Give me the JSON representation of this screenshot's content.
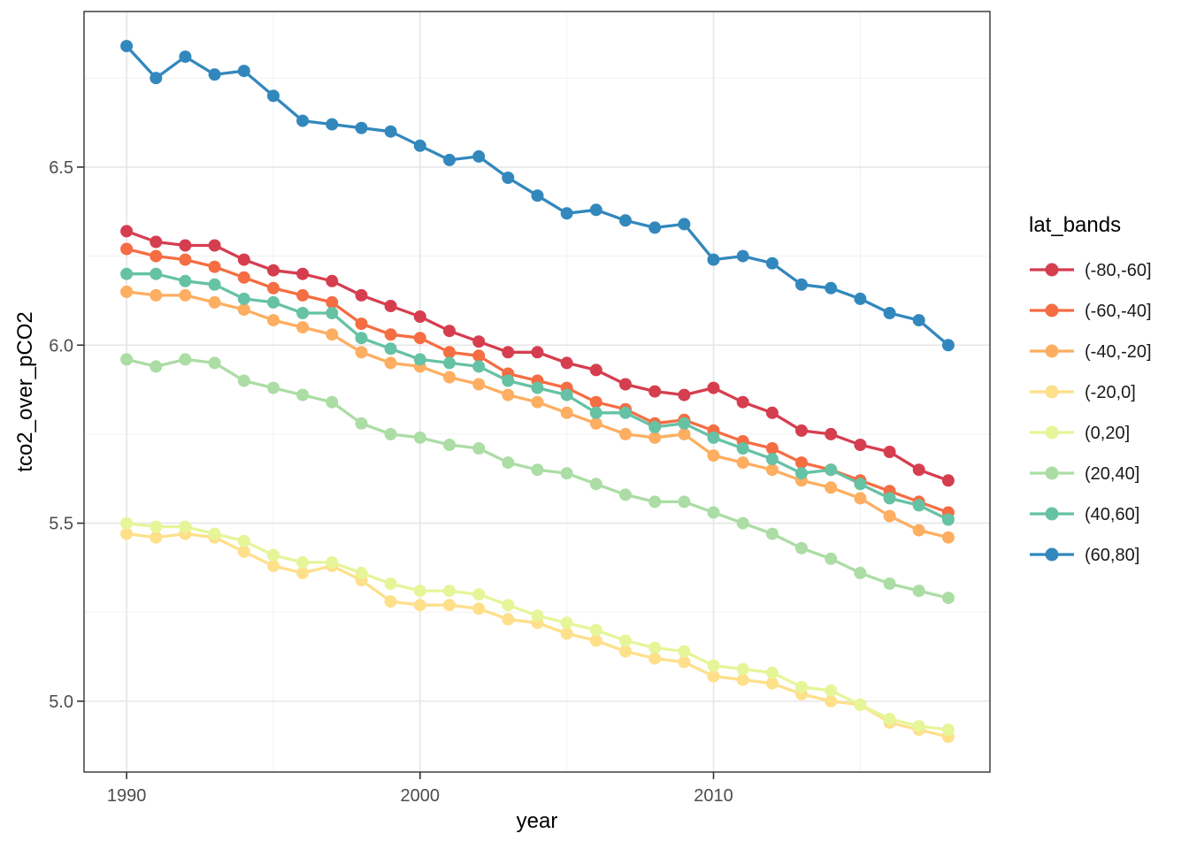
{
  "chart_data": {
    "type": "line",
    "title": "",
    "xlabel": "year",
    "ylabel": "tco2_over_pCO2",
    "legend_title": "lat_bands",
    "legend_position": "right",
    "grid": true,
    "panel_background": "#ffffff",
    "major_grid_color": "#e6e6e6",
    "minor_grid_color": "#f0f0f0",
    "panel_border_color": "#333333",
    "tick_color": "#333333",
    "x": [
      1990,
      1991,
      1992,
      1993,
      1994,
      1995,
      1996,
      1997,
      1998,
      1999,
      2000,
      2001,
      2002,
      2003,
      2004,
      2005,
      2006,
      2007,
      2008,
      2009,
      2010,
      2011,
      2012,
      2013,
      2014,
      2015,
      2016,
      2017,
      2018
    ],
    "x_ticks": [
      1990,
      2000,
      2010
    ],
    "x_minor_ticks": [
      1995,
      2005,
      2015
    ],
    "y_ticks": [
      5.0,
      5.5,
      6.0,
      6.5
    ],
    "y_minor_ticks": [
      5.25,
      5.75,
      6.25,
      6.75
    ],
    "xlim": [
      1988.55,
      2019.42
    ],
    "ylim": [
      4.801,
      6.937
    ],
    "series": [
      {
        "name": "(-80,-60]",
        "color": "#d53e4f",
        "values": [
          6.32,
          6.29,
          6.28,
          6.28,
          6.24,
          6.21,
          6.2,
          6.18,
          6.14,
          6.11,
          6.08,
          6.04,
          6.01,
          5.98,
          5.98,
          5.95,
          5.93,
          5.89,
          5.87,
          5.86,
          5.88,
          5.84,
          5.81,
          5.76,
          5.75,
          5.72,
          5.7,
          5.65,
          5.62
        ]
      },
      {
        "name": "(-60,-40]",
        "color": "#f46d43",
        "values": [
          6.27,
          6.25,
          6.24,
          6.22,
          6.19,
          6.16,
          6.14,
          6.12,
          6.06,
          6.03,
          6.02,
          5.98,
          5.97,
          5.92,
          5.9,
          5.88,
          5.84,
          5.82,
          5.78,
          5.79,
          5.76,
          5.73,
          5.71,
          5.67,
          5.65,
          5.62,
          5.59,
          5.56,
          5.53
        ]
      },
      {
        "name": "(-40,-20]",
        "color": "#fdae61",
        "values": [
          6.15,
          6.14,
          6.14,
          6.12,
          6.1,
          6.07,
          6.05,
          6.03,
          5.98,
          5.95,
          5.94,
          5.91,
          5.89,
          5.86,
          5.84,
          5.81,
          5.78,
          5.75,
          5.74,
          5.75,
          5.69,
          5.67,
          5.65,
          5.62,
          5.6,
          5.57,
          5.52,
          5.48,
          5.46
        ]
      },
      {
        "name": "(-20,0]",
        "color": "#fee08b",
        "values": [
          5.47,
          5.46,
          5.47,
          5.46,
          5.42,
          5.38,
          5.36,
          5.38,
          5.34,
          5.28,
          5.27,
          5.27,
          5.26,
          5.23,
          5.22,
          5.19,
          5.17,
          5.14,
          5.12,
          5.11,
          5.07,
          5.06,
          5.05,
          5.02,
          5.0,
          4.99,
          4.94,
          4.92,
          4.9
        ]
      },
      {
        "name": "(0,20]",
        "color": "#e6f598",
        "values": [
          5.5,
          5.49,
          5.49,
          5.47,
          5.45,
          5.41,
          5.39,
          5.39,
          5.36,
          5.33,
          5.31,
          5.31,
          5.3,
          5.27,
          5.24,
          5.22,
          5.2,
          5.17,
          5.15,
          5.14,
          5.1,
          5.09,
          5.08,
          5.04,
          5.03,
          4.99,
          4.95,
          4.93,
          4.92
        ]
      },
      {
        "name": "(20,40]",
        "color": "#abdda4",
        "values": [
          5.96,
          5.94,
          5.96,
          5.95,
          5.9,
          5.88,
          5.86,
          5.84,
          5.78,
          5.75,
          5.74,
          5.72,
          5.71,
          5.67,
          5.65,
          5.64,
          5.61,
          5.58,
          5.56,
          5.56,
          5.53,
          5.5,
          5.47,
          5.43,
          5.4,
          5.36,
          5.33,
          5.31,
          5.29
        ]
      },
      {
        "name": "(40,60]",
        "color": "#66c2a5",
        "values": [
          6.2,
          6.2,
          6.18,
          6.17,
          6.13,
          6.12,
          6.09,
          6.09,
          6.02,
          5.99,
          5.96,
          5.95,
          5.94,
          5.9,
          5.88,
          5.86,
          5.81,
          5.81,
          5.77,
          5.78,
          5.74,
          5.71,
          5.68,
          5.64,
          5.65,
          5.61,
          5.57,
          5.55,
          5.51
        ]
      },
      {
        "name": "(60,80]",
        "color": "#3288bd",
        "values": [
          6.84,
          6.75,
          6.81,
          6.76,
          6.77,
          6.7,
          6.63,
          6.62,
          6.61,
          6.6,
          6.56,
          6.52,
          6.53,
          6.47,
          6.42,
          6.37,
          6.38,
          6.35,
          6.33,
          6.34,
          6.24,
          6.25,
          6.23,
          6.17,
          6.16,
          6.13,
          6.09,
          6.07,
          6.0
        ]
      }
    ]
  }
}
